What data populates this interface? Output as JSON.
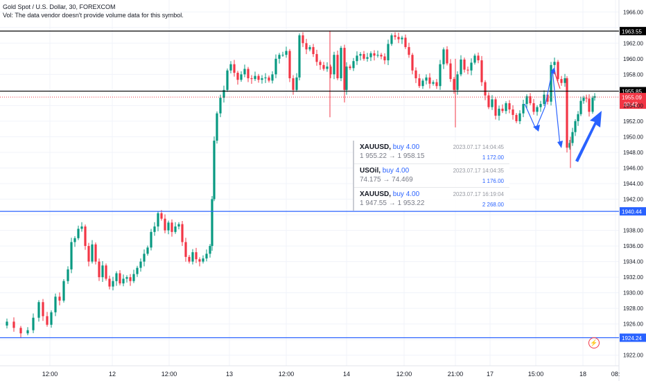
{
  "header": {
    "title": "Gold Spot / U.S. Dollar, 30, FOREXCOM",
    "volume_note": "Vol: The data vendor doesn't provide volume data for this symbol."
  },
  "colors": {
    "up": "#089981",
    "down": "#f23645",
    "level_black": "#000000",
    "level_blue": "#2962ff",
    "arrow": "#2962ff",
    "grid": "#f0f3fa",
    "axis_text": "#131722"
  },
  "trades": [
    {
      "symbol": "XAUUSD",
      "side": "buy 4.00",
      "time": "2023.07.17 14:04:45",
      "prices": "1 955.22 → 1 958.15",
      "profit": "1 172.00"
    },
    {
      "symbol": "USOil",
      "side": "buy 4.00",
      "time": "2023.07.17 14:04:35",
      "prices": "74.175 → 74.469",
      "profit": "1 176.00"
    },
    {
      "symbol": "XAUUSD",
      "side": "buy 4.00",
      "time": "2023.07.17 16:19:04",
      "prices": "1 947.55 → 1 953.22",
      "profit": "2 268.00"
    }
  ],
  "chart_data": {
    "type": "candlestick",
    "ylim": [
      1921,
      1967
    ],
    "y_ticks": [
      "1922.00",
      "1924.00",
      "1926.00",
      "1928.00",
      "1930.00",
      "1932.00",
      "1934.00",
      "1936.00",
      "1938.00",
      "1940.00",
      "1942.00",
      "1944.00",
      "1946.00",
      "1948.00",
      "1950.00",
      "1952.00",
      "1954.00",
      "1956.00",
      "1958.00",
      "1960.00",
      "1962.00",
      "1964.00",
      "1966.00"
    ],
    "x_ticks": [
      "12:00",
      "12",
      "12:00",
      "13",
      "12:00",
      "14",
      "12:00",
      "21:00",
      "17",
      "15:00",
      "18",
      "08:"
    ],
    "levels": [
      {
        "price": 1963.55,
        "label": "1963.55",
        "color": "#000000"
      },
      {
        "price": 1955.85,
        "label": "1955.85",
        "color": "#000000"
      },
      {
        "price": 1940.44,
        "label": "1940.44",
        "color": "#2962ff"
      },
      {
        "price": 1924.24,
        "label": "1924.24",
        "color": "#2962ff"
      }
    ],
    "current_price": {
      "price": 1955.09,
      "label": "1955.09",
      "countdown": "00:42",
      "color": "#f23645"
    },
    "price_path": [
      [
        0,
        1925.8
      ],
      [
        10,
        1926.3
      ],
      [
        20,
        1925.5
      ],
      [
        30,
        1924.8
      ],
      [
        40,
        1925.2
      ],
      [
        48,
        1926.8
      ],
      [
        56,
        1928.8
      ],
      [
        62,
        1927.0
      ],
      [
        68,
        1925.9
      ],
      [
        74,
        1927.5
      ],
      [
        80,
        1929.5
      ],
      [
        86,
        1929.0
      ],
      [
        92,
        1931.5
      ],
      [
        98,
        1933.0
      ],
      [
        103,
        1936.5
      ],
      [
        108,
        1937.0
      ],
      [
        113,
        1938.2
      ],
      [
        118,
        1938.5
      ],
      [
        123,
        1936.0
      ],
      [
        128,
        1934.0
      ],
      [
        133,
        1936.2
      ],
      [
        138,
        1934.0
      ],
      [
        143,
        1932.0
      ],
      [
        148,
        1933.5
      ],
      [
        153,
        1931.8
      ],
      [
        158,
        1930.8
      ],
      [
        163,
        1931.5
      ],
      [
        168,
        1932.5
      ],
      [
        173,
        1931.2
      ],
      [
        178,
        1931.8
      ],
      [
        183,
        1932.0
      ],
      [
        188,
        1931.5
      ],
      [
        193,
        1932.4
      ],
      [
        198,
        1933.2
      ],
      [
        203,
        1934.0
      ],
      [
        208,
        1935.0
      ],
      [
        213,
        1935.8
      ],
      [
        218,
        1937.8
      ],
      [
        223,
        1938.5
      ],
      [
        228,
        1940.2
      ],
      [
        233,
        1939.5
      ],
      [
        238,
        1938.0
      ],
      [
        243,
        1939.0
      ],
      [
        248,
        1937.8
      ],
      [
        253,
        1938.5
      ],
      [
        258,
        1938.8
      ],
      [
        263,
        1936.5
      ],
      [
        268,
        1934.6
      ],
      [
        273,
        1934.0
      ],
      [
        278,
        1935.2
      ],
      [
        283,
        1934.3
      ],
      [
        288,
        1934.0
      ],
      [
        293,
        1934.4
      ],
      [
        298,
        1935.0
      ],
      [
        303,
        1936.0
      ],
      [
        306,
        1942.0
      ],
      [
        309,
        1949.5
      ],
      [
        313,
        1953.0
      ],
      [
        318,
        1955.0
      ],
      [
        323,
        1956.0
      ],
      [
        328,
        1958.5
      ],
      [
        333,
        1959.3
      ],
      [
        338,
        1958.2
      ],
      [
        343,
        1957.3
      ],
      [
        348,
        1958.0
      ],
      [
        353,
        1958.7
      ],
      [
        358,
        1957.5
      ],
      [
        363,
        1957.4
      ],
      [
        368,
        1957.8
      ],
      [
        373,
        1957.3
      ],
      [
        378,
        1957.5
      ],
      [
        383,
        1957.6
      ],
      [
        388,
        1957.2
      ],
      [
        393,
        1958.0
      ],
      [
        398,
        1960.0
      ],
      [
        403,
        1960.5
      ],
      [
        408,
        1960.5
      ],
      [
        413,
        1961.0
      ],
      [
        418,
        1957.5
      ],
      [
        423,
        1956.0
      ],
      [
        428,
        1957.6
      ],
      [
        432,
        1963.0
      ],
      [
        437,
        1962.0
      ],
      [
        442,
        1961.2
      ],
      [
        447,
        1961.5
      ],
      [
        452,
        1960.6
      ],
      [
        457,
        1959.6
      ],
      [
        462,
        1959.2
      ],
      [
        467,
        1958.7
      ],
      [
        472,
        1959.0
      ],
      [
        477,
        1958.0
      ],
      [
        482,
        1960.5
      ],
      [
        487,
        1957.5
      ],
      [
        492,
        1961.4
      ],
      [
        497,
        1956.0
      ],
      [
        500,
        1959.0
      ],
      [
        505,
        1958.8
      ],
      [
        510,
        1959.7
      ],
      [
        515,
        1960.4
      ],
      [
        520,
        1960.6
      ],
      [
        525,
        1960.0
      ],
      [
        530,
        1960.2
      ],
      [
        535,
        1960.7
      ],
      [
        540,
        1960.4
      ],
      [
        545,
        1960.5
      ],
      [
        550,
        1960.3
      ],
      [
        555,
        1959.8
      ],
      [
        560,
        1961.9
      ],
      [
        565,
        1963.0
      ],
      [
        570,
        1962.8
      ],
      [
        575,
        1962.5
      ],
      [
        580,
        1962.7
      ],
      [
        585,
        1961.5
      ],
      [
        590,
        1960.5
      ],
      [
        595,
        1958.5
      ],
      [
        600,
        1957.5
      ],
      [
        605,
        1956.5
      ],
      [
        610,
        1957.2
      ],
      [
        615,
        1957.6
      ],
      [
        620,
        1956.8
      ],
      [
        625,
        1957.0
      ],
      [
        630,
        1956.5
      ],
      [
        635,
        1959.3
      ],
      [
        640,
        1961.2
      ],
      [
        645,
        1959.4
      ],
      [
        650,
        1957.4
      ],
      [
        655,
        1956.0
      ],
      [
        660,
        1958.0
      ],
      [
        665,
        1959.9
      ],
      [
        670,
        1958.6
      ],
      [
        675,
        1958.5
      ],
      [
        680,
        1959.5
      ],
      [
        685,
        1960.4
      ],
      [
        690,
        1959.8
      ],
      [
        695,
        1957.0
      ],
      [
        700,
        1955.3
      ],
      [
        705,
        1953.8
      ],
      [
        710,
        1954.8
      ],
      [
        715,
        1952.7
      ],
      [
        720,
        1953.6
      ],
      [
        725,
        1953.3
      ],
      [
        730,
        1954.3
      ],
      [
        735,
        1953.5
      ],
      [
        740,
        1952.8
      ],
      [
        745,
        1952.0
      ],
      [
        750,
        1953.0
      ],
      [
        755,
        1954.2
      ],
      [
        760,
        1955.2
      ],
      [
        765,
        1954.3
      ],
      [
        770,
        1953.2
      ],
      [
        775,
        1953.8
      ],
      [
        780,
        1954.2
      ],
      [
        785,
        1955.4
      ],
      [
        790,
        1954.5
      ],
      [
        795,
        1959.2
      ],
      [
        800,
        1959.6
      ],
      [
        805,
        1957.4
      ],
      [
        810,
        1956.9
      ],
      [
        815,
        1957.5
      ],
      [
        818,
        1948.6
      ],
      [
        822,
        1949.2
      ],
      [
        826,
        1950.6
      ],
      [
        830,
        1952.0
      ],
      [
        834,
        1952.9
      ],
      [
        838,
        1954.6
      ],
      [
        842,
        1955.0
      ],
      [
        846,
        1954.9
      ],
      [
        850,
        1953.2
      ],
      [
        855,
        1955.0
      ],
      [
        858,
        1955.2
      ]
    ],
    "annotations": [
      {
        "type": "arrow",
        "description": "blue arrows drawn on chart",
        "color": "#2962ff"
      }
    ]
  },
  "footer": {
    "lightning_icon": "lightning-icon"
  }
}
